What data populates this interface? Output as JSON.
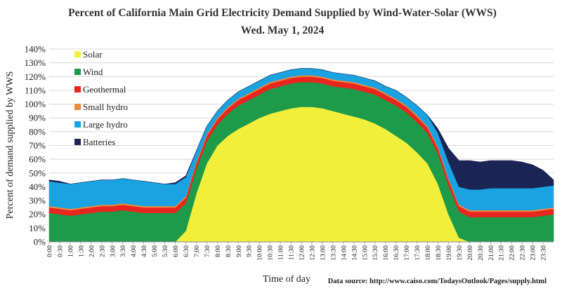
{
  "chart_data": {
    "type": "area",
    "title": "Percent of California Main Grid Electricity Demand Supplied by Wind-Water-Solar (WWS)",
    "subtitle": "Wed. May 1, 2024",
    "xlabel": "Time of day",
    "ylabel": "Percent of demand supplied by WWS",
    "source": "Data source: http://www.caiso.com/TodaysOutlook/Pages/supply.html",
    "ylim": [
      0,
      140
    ],
    "y_ticks": [
      "0%",
      "10%",
      "20%",
      "30%",
      "40%",
      "50%",
      "60%",
      "70%",
      "80%",
      "90%",
      "100%",
      "110%",
      "120%",
      "130%",
      "140%"
    ],
    "x_ticks": [
      "0:00",
      "0:30",
      "1:00",
      "1:30",
      "2:00",
      "2:30",
      "3:00",
      "3:30",
      "4:00",
      "4:30",
      "5:00",
      "5:30",
      "6:00",
      "6:30",
      "7:00",
      "7:30",
      "8:00",
      "8:30",
      "9:00",
      "9:30",
      "10:00",
      "10:30",
      "11:00",
      "11:30",
      "12:00",
      "12:30",
      "13:00",
      "13:30",
      "14:00",
      "14:30",
      "15:00",
      "15:30",
      "16:00",
      "16:30",
      "17:00",
      "17:30",
      "18:00",
      "18:30",
      "19:00",
      "19:30",
      "20:00",
      "20:30",
      "21:00",
      "21:30",
      "22:00",
      "22:30",
      "23:00",
      "23:30"
    ],
    "stacked": true,
    "legend_position": "top-left",
    "grid": true,
    "x": [
      0,
      0.5,
      1,
      1.5,
      2,
      2.5,
      3,
      3.5,
      4,
      4.5,
      5,
      5.5,
      6,
      6.5,
      7,
      7.5,
      8,
      8.5,
      9,
      9.5,
      10,
      10.5,
      11,
      11.5,
      12,
      12.5,
      13,
      13.5,
      14,
      14.5,
      15,
      15.5,
      16,
      16.5,
      17,
      17.5,
      18,
      18.5,
      19,
      19.5,
      20,
      20.5,
      21,
      21.5,
      22,
      22.5,
      23,
      23.5,
      24
    ],
    "series": [
      {
        "name": "Solar",
        "color": "#f2ef3c",
        "values": [
          0,
          0,
          0,
          0,
          0,
          0,
          0,
          0,
          0,
          0,
          0,
          0,
          0,
          8,
          35,
          57,
          70,
          77,
          82,
          86,
          90,
          93,
          95,
          97,
          98,
          98,
          97,
          95,
          93,
          91,
          89,
          86,
          82,
          77,
          72,
          65,
          57,
          42,
          20,
          3,
          0,
          0,
          0,
          0,
          0,
          0,
          0,
          0,
          0
        ]
      },
      {
        "name": "Wind",
        "color": "#1e9a4b",
        "values": [
          21,
          20,
          19,
          20,
          21,
          22,
          22,
          23,
          22,
          21,
          21,
          21,
          21,
          20,
          18,
          16,
          15,
          16,
          17,
          17,
          17,
          18,
          18,
          18,
          18,
          18,
          18,
          18,
          19,
          20,
          20,
          21,
          21,
          22,
          22,
          22,
          22,
          22,
          21,
          19,
          18,
          18,
          18,
          18,
          18,
          18,
          18,
          19,
          20
        ]
      },
      {
        "name": "Geothermal",
        "color": "#e8261f",
        "values": [
          4,
          4,
          4,
          4,
          4,
          4,
          4,
          4,
          4,
          4,
          4,
          4,
          4,
          4,
          4,
          4,
          4,
          4,
          4,
          4,
          4,
          4,
          4,
          4,
          4,
          4,
          4,
          4,
          4,
          4,
          4,
          4,
          4,
          4,
          4,
          4,
          4,
          4,
          4,
          4,
          4,
          4,
          4,
          4,
          4,
          4,
          4,
          4,
          4
        ]
      },
      {
        "name": "Small hydro",
        "color": "#f08c3c",
        "values": [
          1,
          1,
          1,
          1,
          1,
          1,
          1,
          1,
          1,
          1,
          1,
          1,
          1,
          1,
          1,
          1,
          1,
          1,
          1,
          1,
          1,
          1,
          1,
          1,
          1,
          1,
          1,
          1,
          1,
          1,
          1,
          1,
          1,
          1,
          1,
          1,
          1,
          1,
          1,
          1,
          1,
          1,
          1,
          1,
          1,
          1,
          1,
          1,
          1
        ]
      },
      {
        "name": "Large hydro",
        "color": "#1aa3e0",
        "values": [
          18,
          18,
          18,
          18,
          18,
          18,
          18,
          18,
          18,
          18,
          17,
          16,
          16,
          14,
          8,
          6,
          5,
          5,
          5,
          5,
          5,
          5,
          5,
          5,
          5,
          5,
          5,
          5,
          5,
          5,
          5,
          5,
          5,
          6,
          6,
          7,
          8,
          10,
          12,
          13,
          15,
          15,
          16,
          16,
          16,
          16,
          16,
          16,
          16
        ]
      },
      {
        "name": "Batteries",
        "color": "#1a2455",
        "values": [
          1,
          1,
          0,
          0,
          0,
          0,
          0,
          0,
          0,
          0,
          0,
          0,
          1,
          1,
          0,
          0,
          0,
          0,
          0,
          0,
          0,
          0,
          0,
          0,
          0,
          0,
          0,
          0,
          0,
          0,
          0,
          0,
          0,
          0,
          0,
          0,
          0,
          3,
          10,
          19,
          21,
          20,
          20,
          20,
          20,
          19,
          17,
          12,
          4
        ]
      }
    ]
  }
}
